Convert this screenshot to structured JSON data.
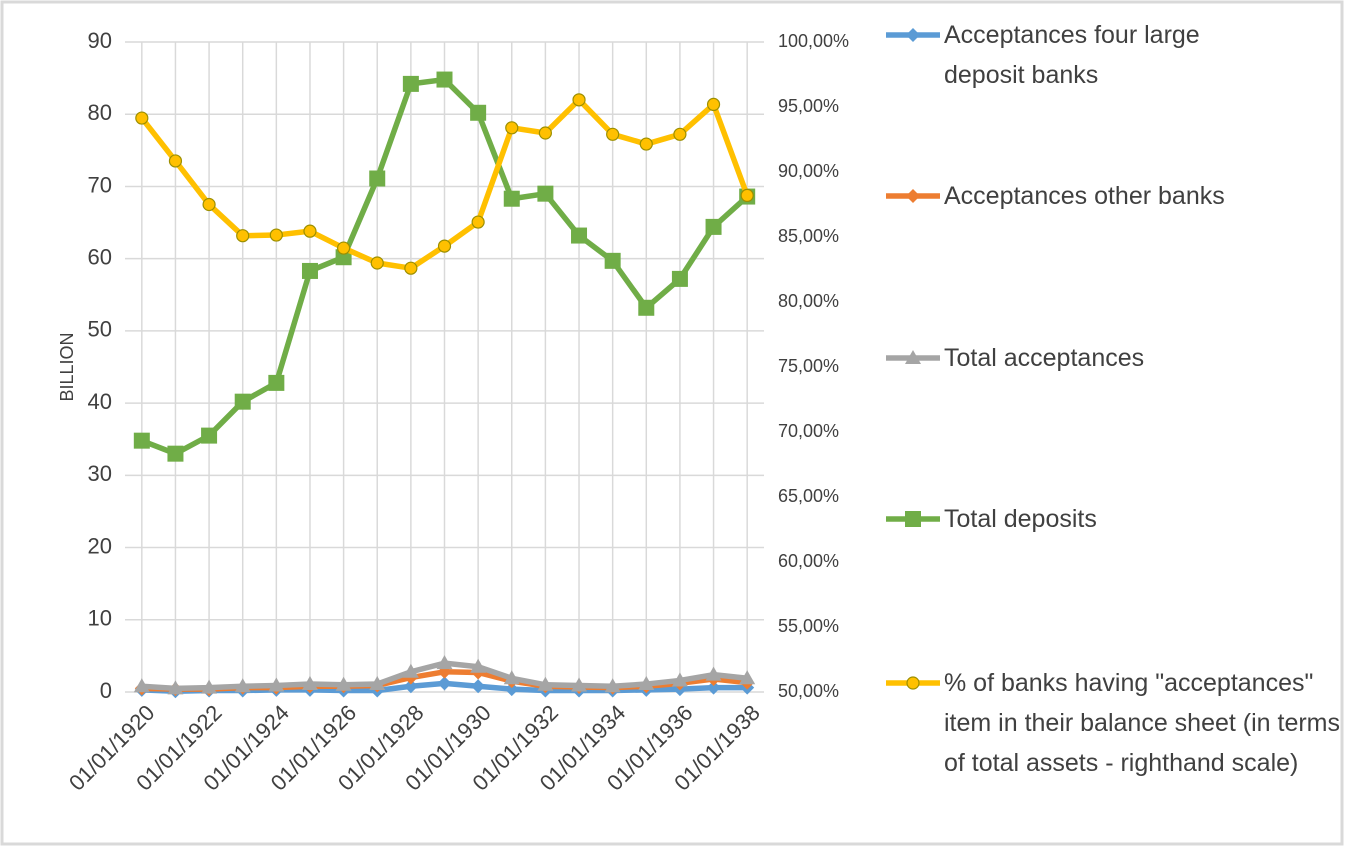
{
  "chart_data": {
    "type": "line",
    "y_label": "BILLION",
    "categories": [
      "01/01/1920",
      null,
      "01/01/1922",
      null,
      "01/01/1924",
      null,
      "01/01/1926",
      null,
      "01/01/1928",
      null,
      "01/01/1930",
      null,
      "01/01/1932",
      null,
      "01/01/1934",
      null,
      "01/01/1936",
      null,
      "01/01/1938"
    ],
    "ylim": [
      0,
      90
    ],
    "yticks": [
      0,
      10,
      20,
      30,
      40,
      50,
      60,
      70,
      80,
      90
    ],
    "y2lim": [
      50,
      100
    ],
    "y2ticks": [
      {
        "value": 50,
        "label": "50,00%"
      },
      {
        "value": 55,
        "label": "55,00%"
      },
      {
        "value": 60,
        "label": "60,00%"
      },
      {
        "value": 65,
        "label": "65,00%"
      },
      {
        "value": 70,
        "label": "70,00%"
      },
      {
        "value": 75,
        "label": "75,00%"
      },
      {
        "value": 80,
        "label": "80,00%"
      },
      {
        "value": 85,
        "label": "85,00%"
      },
      {
        "value": 90,
        "label": "90,00%"
      },
      {
        "value": 95,
        "label": "95,00%"
      },
      {
        "value": 100,
        "label": "100,00%"
      }
    ],
    "grid": true,
    "legend": "right",
    "series": [
      {
        "name": "Acceptances four large deposit banks",
        "color": "#5b9bd5",
        "marker": "diamond",
        "values": [
          0.3,
          0.1,
          0.2,
          0.2,
          0.3,
          0.3,
          0.2,
          0.2,
          0.8,
          1.2,
          0.8,
          0.4,
          0.2,
          0.2,
          0.2,
          0.3,
          0.4,
          0.6,
          0.6
        ]
      },
      {
        "name": "Acceptances other banks",
        "color": "#ed7d31",
        "marker": "diamond",
        "values": [
          0.5,
          0.4,
          0.4,
          0.6,
          0.6,
          0.8,
          0.8,
          0.9,
          2.0,
          2.8,
          2.7,
          1.5,
          0.8,
          0.7,
          0.6,
          0.8,
          1.2,
          1.8,
          1.3
        ]
      },
      {
        "name": "Total acceptances",
        "color": "#a5a5a5",
        "marker": "triangle",
        "values": [
          0.8,
          0.5,
          0.6,
          0.8,
          0.9,
          1.1,
          1.0,
          1.1,
          2.8,
          4.0,
          3.5,
          1.9,
          1.0,
          0.9,
          0.8,
          1.1,
          1.6,
          2.4,
          1.9
        ]
      },
      {
        "name": "Total deposits",
        "color": "#70ad47",
        "marker": "square",
        "values": [
          34.8,
          33.0,
          35.5,
          40.2,
          42.8,
          58.3,
          60.2,
          71.1,
          84.2,
          84.8,
          80.2,
          68.3,
          69.0,
          63.2,
          59.7,
          53.2,
          57.2,
          64.4,
          68.6
        ]
      },
      {
        "name": "% of banks having \"acceptances\" item in their balance sheet (in terms of total assets - righthand scale)",
        "color": "#ffc000",
        "marker": "circle",
        "axis": "y2",
        "values": [
          94.15,
          90.85,
          87.5,
          85.1,
          85.15,
          85.45,
          84.15,
          83.0,
          82.6,
          84.3,
          86.15,
          93.4,
          93.0,
          95.55,
          92.9,
          92.15,
          92.9,
          95.2,
          88.2
        ]
      }
    ]
  }
}
